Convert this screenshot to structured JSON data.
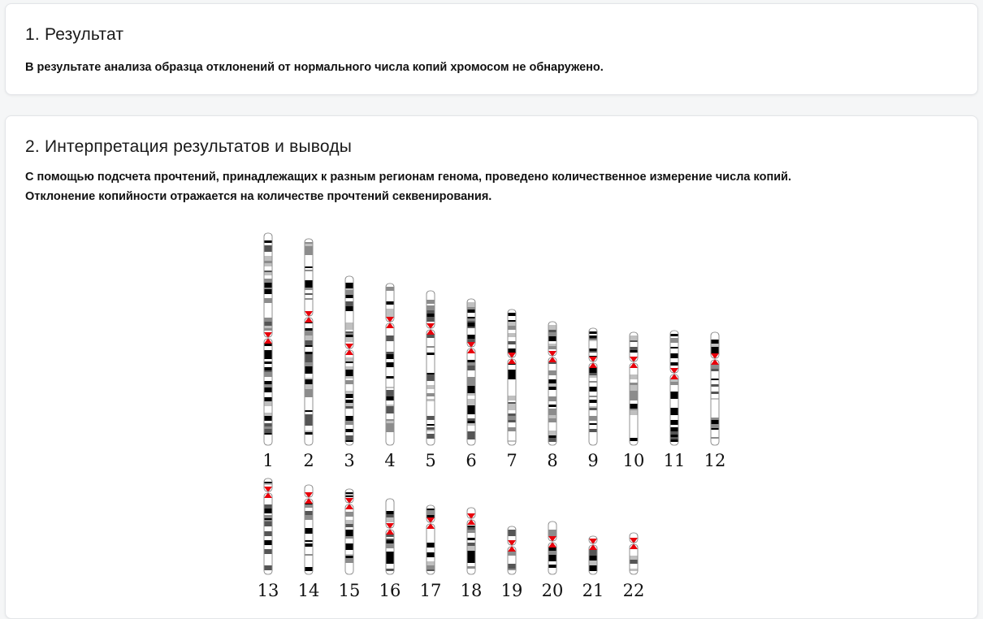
{
  "section1": {
    "title": "1. Результат",
    "text": "В результате анализа образца отклонений от нормального числа копий хромосом не обнаружено."
  },
  "section2": {
    "title": "2. Интерпретация результатов и выводы",
    "text_line1": "С помощью подсчета прочтений, принадлежащих к разным регионам генома, проведено количественное измерение числа копий.",
    "text_line2": "Отклонение копийности отражается на количестве прочтений секвенирования."
  },
  "karyogram": {
    "row1_labels": [
      "1",
      "2",
      "3",
      "4",
      "5",
      "6",
      "7",
      "8",
      "9",
      "10",
      "11",
      "12"
    ],
    "row2_labels": [
      "13",
      "14",
      "15",
      "16",
      "17",
      "18",
      "19",
      "20",
      "21",
      "22"
    ],
    "centromere_color": "#e8000b",
    "band_colors": [
      "#000000",
      "#555555",
      "#8c8c8c",
      "#c0c0c0",
      "#ffffff"
    ]
  }
}
